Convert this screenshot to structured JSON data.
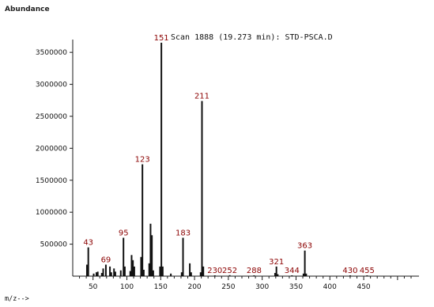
{
  "chart_data": {
    "type": "bar",
    "title": "Scan 1888 (19.273 min): STD-PSCA.D",
    "ylabel": "Abundance",
    "xlabel": "m/z-->",
    "xlim": [
      20,
      520
    ],
    "ylim": [
      0,
      3700000
    ],
    "x_ticks": [
      50,
      100,
      150,
      200,
      250,
      300,
      350,
      400,
      450
    ],
    "y_ticks": [
      500000,
      1000000,
      1500000,
      2000000,
      2500000,
      3000000,
      3500000
    ],
    "grid": false,
    "peaks": [
      {
        "mz": 41,
        "value": 180000
      },
      {
        "mz": 43,
        "value": 450000,
        "label": "43"
      },
      {
        "mz": 51,
        "value": 40000
      },
      {
        "mz": 55,
        "value": 60000
      },
      {
        "mz": 57,
        "value": 70000
      },
      {
        "mz": 63,
        "value": 50000
      },
      {
        "mz": 65,
        "value": 120000
      },
      {
        "mz": 69,
        "value": 180000,
        "label": "69"
      },
      {
        "mz": 75,
        "value": 150000
      },
      {
        "mz": 77,
        "value": 60000
      },
      {
        "mz": 81,
        "value": 120000
      },
      {
        "mz": 83,
        "value": 70000
      },
      {
        "mz": 91,
        "value": 90000
      },
      {
        "mz": 95,
        "value": 600000,
        "label": "95"
      },
      {
        "mz": 97,
        "value": 150000
      },
      {
        "mz": 105,
        "value": 80000
      },
      {
        "mz": 107,
        "value": 330000
      },
      {
        "mz": 109,
        "value": 250000
      },
      {
        "mz": 111,
        "value": 150000
      },
      {
        "mz": 121,
        "value": 300000
      },
      {
        "mz": 123,
        "value": 1750000,
        "label": "123"
      },
      {
        "mz": 125,
        "value": 100000
      },
      {
        "mz": 133,
        "value": 200000
      },
      {
        "mz": 135,
        "value": 820000
      },
      {
        "mz": 137,
        "value": 640000
      },
      {
        "mz": 139,
        "value": 90000
      },
      {
        "mz": 149,
        "value": 150000
      },
      {
        "mz": 151,
        "value": 3650000,
        "label": "151"
      },
      {
        "mz": 153,
        "value": 150000
      },
      {
        "mz": 165,
        "value": 40000
      },
      {
        "mz": 181,
        "value": 60000
      },
      {
        "mz": 183,
        "value": 600000,
        "label": "183"
      },
      {
        "mz": 193,
        "value": 200000
      },
      {
        "mz": 195,
        "value": 60000
      },
      {
        "mz": 209,
        "value": 60000
      },
      {
        "mz": 211,
        "value": 2740000,
        "label": "211"
      },
      {
        "mz": 213,
        "value": 150000
      },
      {
        "mz": 230,
        "value": 10000,
        "label": "230"
      },
      {
        "mz": 252,
        "value": 15000,
        "label": "252"
      },
      {
        "mz": 288,
        "value": 10000,
        "label": "288"
      },
      {
        "mz": 319,
        "value": 50000
      },
      {
        "mz": 321,
        "value": 150000,
        "label": "321"
      },
      {
        "mz": 323,
        "value": 30000
      },
      {
        "mz": 344,
        "value": 10000,
        "label": "344"
      },
      {
        "mz": 361,
        "value": 40000
      },
      {
        "mz": 363,
        "value": 400000,
        "label": "363"
      },
      {
        "mz": 365,
        "value": 40000
      },
      {
        "mz": 430,
        "value": 8000,
        "label": "430"
      },
      {
        "mz": 455,
        "value": 8000,
        "label": "455"
      }
    ]
  },
  "colors": {
    "axis": "#1a1a1a",
    "peak": "#111111",
    "peak_label": "#8b0000"
  }
}
